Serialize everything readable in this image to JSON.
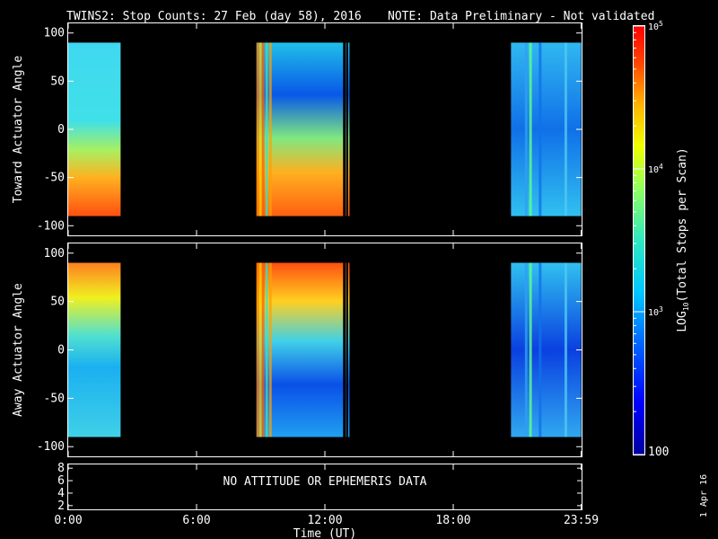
{
  "title": {
    "main": "TWINS2: Stop Counts: 27 Feb (day  58), 2016",
    "note": "NOTE: Data Preliminary - Not validated",
    "note_color": "#ff2020"
  },
  "stamp": "1 Apr 16",
  "chart_data": [
    {
      "type": "heatmap",
      "panel": "toward",
      "ylabel": "Toward Actuator Angle",
      "xlim": [
        0,
        24
      ],
      "ylim": [
        -110,
        110
      ],
      "yticks": [
        "100",
        "50",
        "0",
        "-50",
        "-100"
      ],
      "ytick_values": [
        100,
        50,
        0,
        -50,
        -100
      ],
      "data_blocks": [
        {
          "t_start": 0.0,
          "t_end": 2.45,
          "angle_min": -90,
          "angle_max": 90
        },
        {
          "t_start": 8.8,
          "t_end": 13.2,
          "angle_min": -90,
          "angle_max": 90
        },
        {
          "t_start": 20.7,
          "t_end": 23.98,
          "angle_min": -90,
          "angle_max": 90
        }
      ]
    },
    {
      "type": "heatmap",
      "panel": "away",
      "ylabel": "Away Actuator Angle",
      "xlim": [
        0,
        24
      ],
      "ylim": [
        -110,
        110
      ],
      "yticks": [
        "100",
        "50",
        "0",
        "-50",
        "-100"
      ],
      "ytick_values": [
        100,
        50,
        0,
        -50,
        -100
      ],
      "data_blocks": [
        {
          "t_start": 0.0,
          "t_end": 2.45,
          "angle_min": -90,
          "angle_max": 90
        },
        {
          "t_start": 8.8,
          "t_end": 13.2,
          "angle_min": -90,
          "angle_max": 90
        },
        {
          "t_start": 20.7,
          "t_end": 23.98,
          "angle_min": -90,
          "angle_max": 90
        }
      ]
    },
    {
      "type": "line",
      "panel": "ephemeris",
      "message": "NO ATTITUDE OR EPHEMERIS DATA",
      "yticks": [
        "8",
        "6",
        "4",
        "2"
      ],
      "ytick_values": [
        8,
        6,
        4,
        2
      ],
      "ylim": [
        1.4,
        8.6
      ]
    }
  ],
  "xaxis": {
    "label": "Time (UT)",
    "ticks": [
      "0:00",
      "6:00",
      "12:00",
      "18:00",
      "23:59"
    ],
    "tick_values": [
      0,
      6,
      12,
      18,
      23.98
    ]
  },
  "colorbar": {
    "label": "LOG10(Total Stops per Scan)",
    "label_base": "LOG",
    "label_sub": "10",
    "label_rest": "(Total Stops per Scan)",
    "scale": "log",
    "range": [
      100,
      100000
    ],
    "tick_values": [
      100,
      1000,
      10000,
      100000
    ],
    "min_label": "100",
    "tick_labels": [
      {
        "base": "10",
        "exp": "3"
      },
      {
        "base": "10",
        "exp": "4"
      },
      {
        "base": "10",
        "exp": "5"
      }
    ]
  }
}
